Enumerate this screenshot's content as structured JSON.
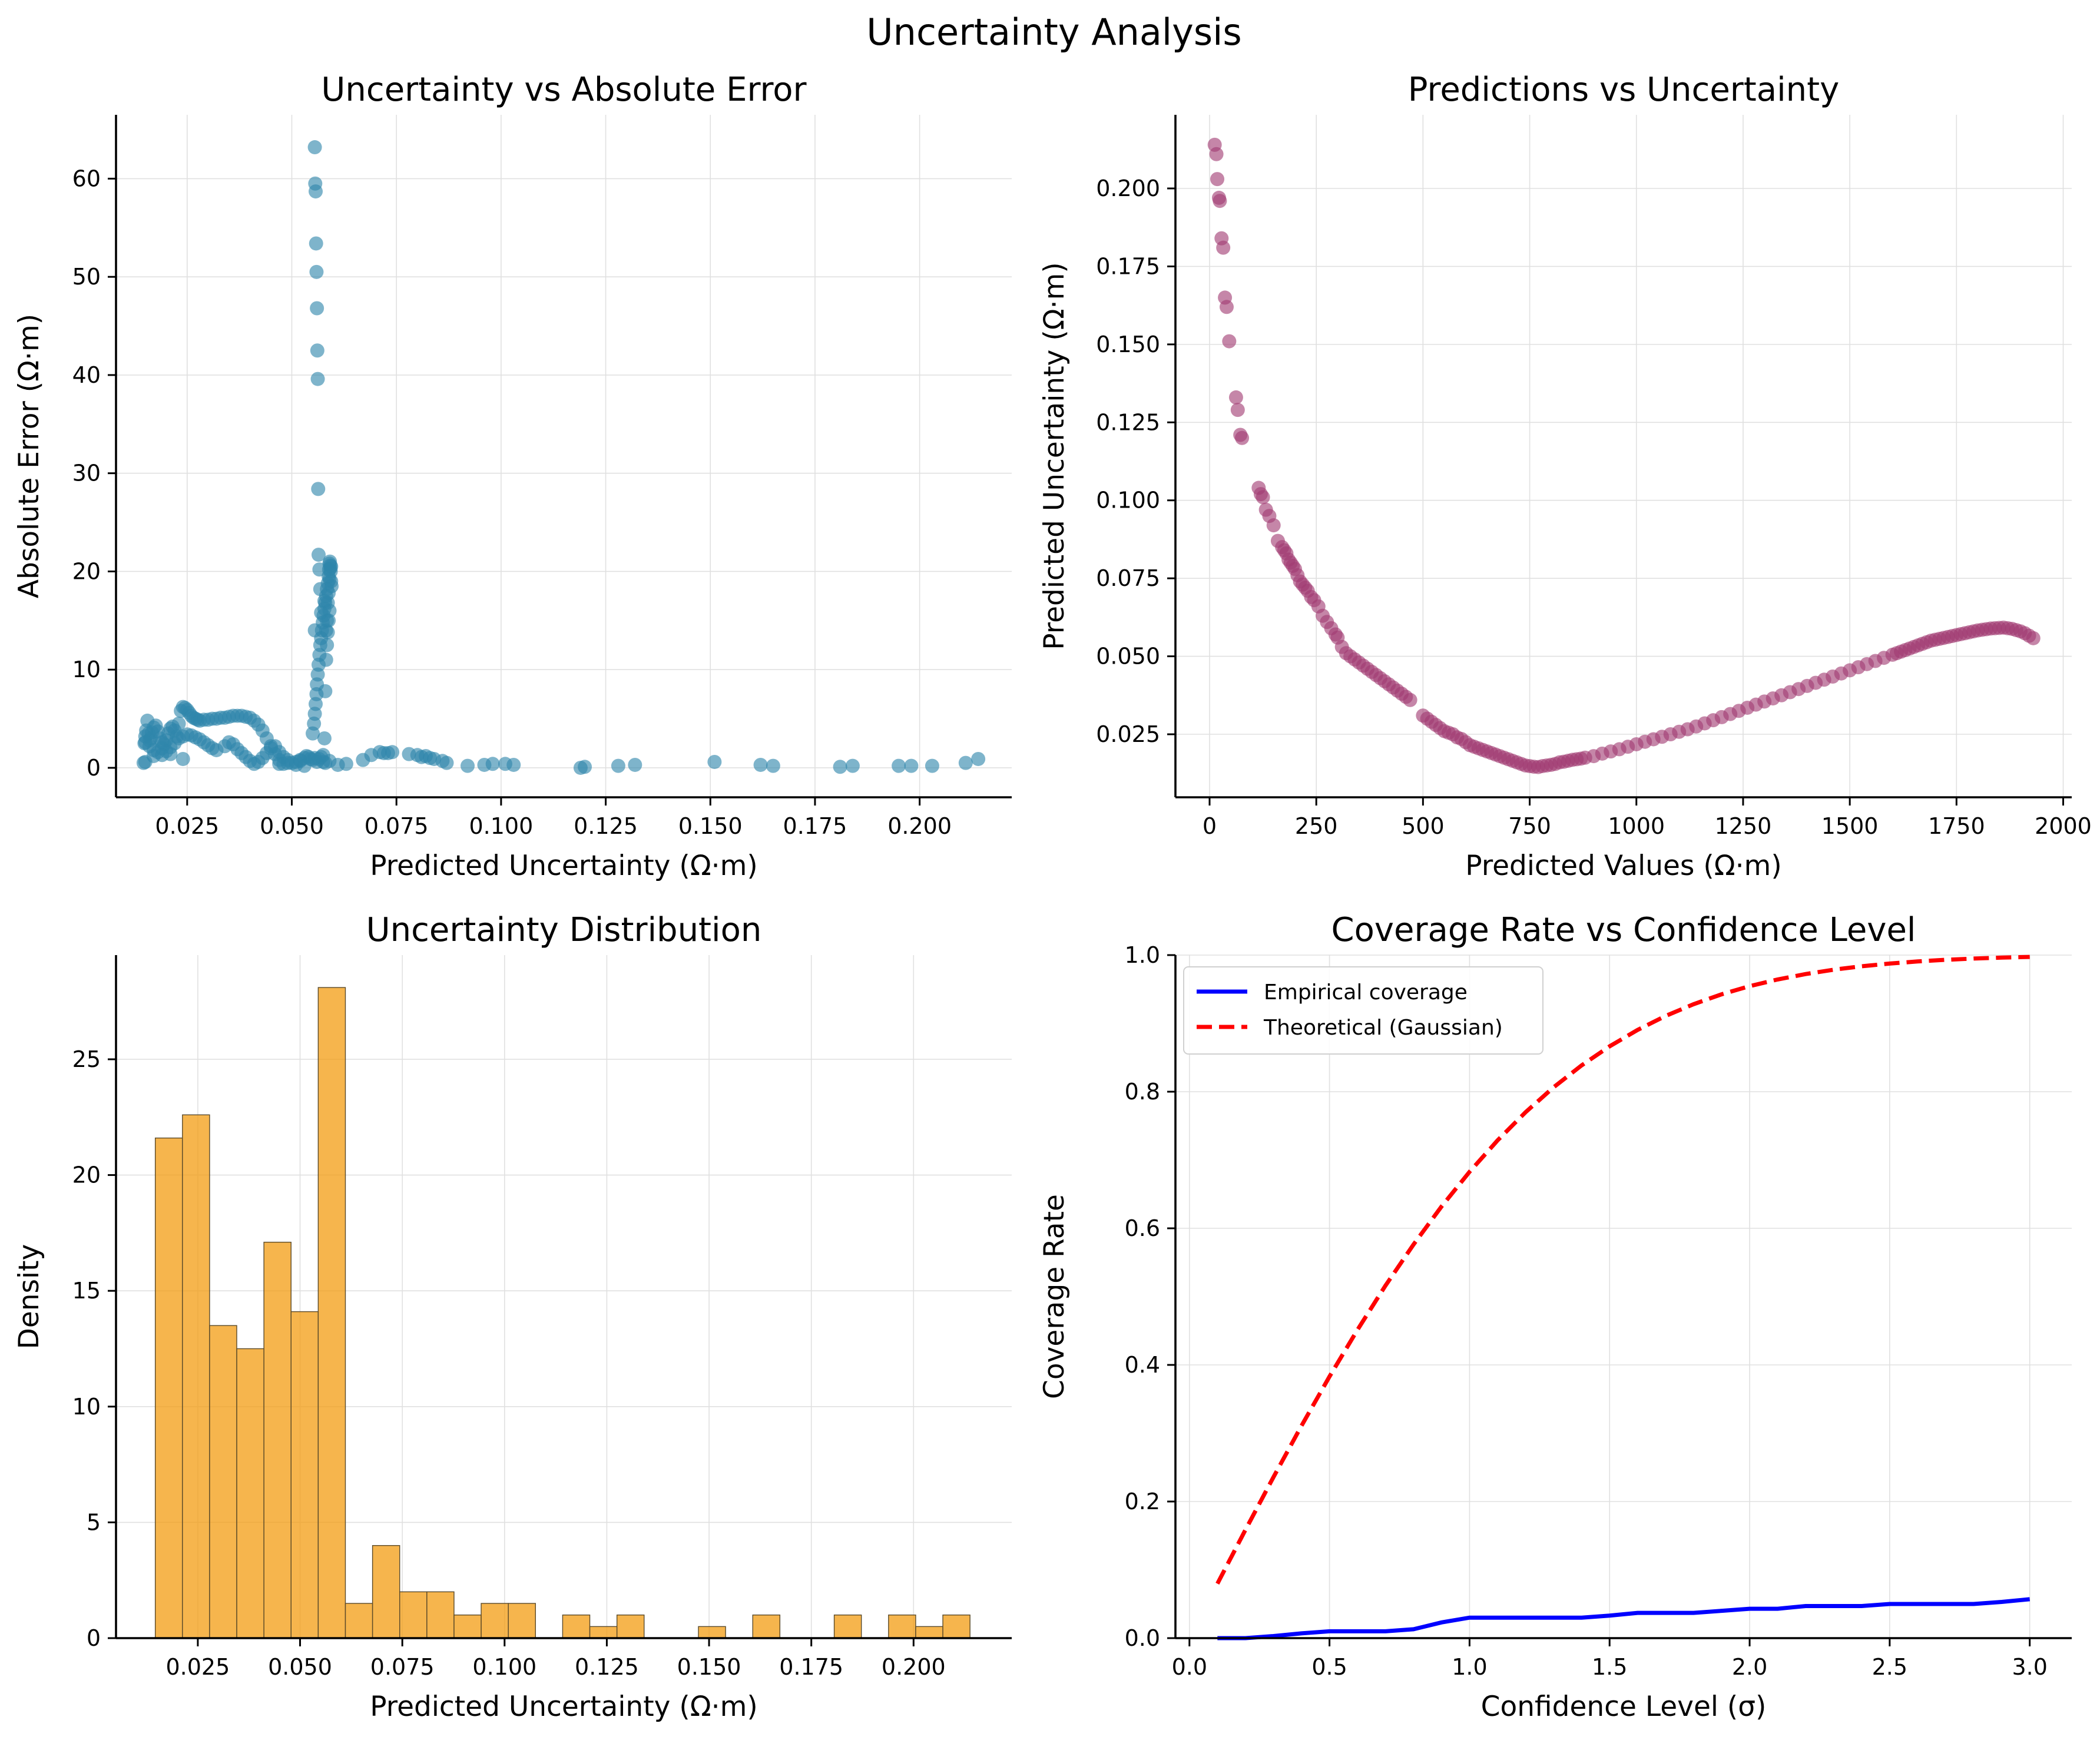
{
  "figure": {
    "title": "Uncertainty Analysis"
  },
  "colors": {
    "scatter1": "#2e86ab",
    "scatter2": "#a23b72",
    "hist": "#f39c12",
    "empirical": "#0000ff",
    "theoretical": "#ff0000"
  },
  "chart_data": [
    {
      "id": "p1",
      "type": "scatter",
      "title": "Uncertainty vs Absolute Error",
      "xlabel": "Predicted Uncertainty (Ω·m)",
      "ylabel": "Absolute Error (Ω·m)",
      "xlim": [
        0.008,
        0.222
      ],
      "ylim": [
        -3,
        66.5
      ],
      "xticks": [
        0.025,
        0.05,
        0.075,
        0.1,
        0.125,
        0.15,
        0.175,
        0.2
      ],
      "xticklabels": [
        "0.025",
        "0.050",
        "0.075",
        "0.100",
        "0.125",
        "0.150",
        "0.175",
        "0.200"
      ],
      "yticks": [
        0,
        10,
        20,
        30,
        40,
        50,
        60
      ],
      "yticklabels": [
        "0",
        "10",
        "20",
        "30",
        "40",
        "50",
        "60"
      ],
      "grid": true,
      "series": [
        {
          "x": [
            0.0146,
            0.0148,
            0.015,
            0.0152,
            0.0155,
            0.0158,
            0.016,
            0.0163,
            0.0166,
            0.017,
            0.0175,
            0.018,
            0.0185,
            0.019,
            0.0195,
            0.02,
            0.0205,
            0.021,
            0.0215,
            0.022,
            0.0225,
            0.023,
            0.0235,
            0.024,
            0.0245,
            0.025,
            0.0255,
            0.026,
            0.0265,
            0.027,
            0.0275,
            0.028,
            0.029,
            0.03,
            0.031,
            0.032,
            0.033,
            0.034,
            0.035,
            0.036,
            0.037,
            0.038,
            0.039,
            0.04,
            0.041,
            0.042,
            0.043,
            0.044,
            0.045,
            0.046,
            0.047,
            0.048,
            0.015,
            0.016,
            0.017,
            0.018,
            0.019,
            0.02,
            0.021,
            0.022,
            0.023,
            0.024,
            0.025,
            0.026,
            0.027,
            0.028,
            0.029,
            0.03,
            0.031,
            0.032,
            0.034,
            0.035,
            0.036,
            0.037,
            0.038,
            0.039,
            0.04,
            0.041,
            0.042,
            0.043,
            0.044,
            0.045,
            0.046,
            0.047,
            0.048,
            0.049,
            0.05,
            0.051,
            0.052,
            0.053,
            0.015,
            0.017,
            0.019,
            0.021,
            0.024,
            0.047,
            0.049,
            0.051,
            0.052,
            0.053,
            0.0535,
            0.054,
            0.0545,
            0.055,
            0.0555,
            0.056,
            0.0565,
            0.057,
            0.0575,
            0.0578,
            0.058,
            0.0582,
            0.0584,
            0.0586,
            0.0588,
            0.059,
            0.055,
            0.0553,
            0.0555,
            0.0557,
            0.0559,
            0.056,
            0.0562,
            0.0564,
            0.0566,
            0.0568,
            0.057,
            0.0572,
            0.0574,
            0.0576,
            0.0578,
            0.058,
            0.0582,
            0.0584,
            0.0586,
            0.0588,
            0.0589,
            0.059,
            0.0591,
            0.0592,
            0.0593,
            0.0594,
            0.0595,
            0.0584,
            0.0586,
            0.0588,
            0.059,
            0.0592,
            0.0594,
            0.0578,
            0.0582,
            0.0555,
            0.0556,
            0.0557,
            0.0558,
            0.0559,
            0.056,
            0.0561,
            0.0562,
            0.0563,
            0.0564,
            0.0566,
            0.0568,
            0.057,
            0.0555,
            0.0575,
            0.058,
            0.059,
            0.061,
            0.063,
            0.067,
            0.069,
            0.071,
            0.072,
            0.073,
            0.074,
            0.078,
            0.08,
            0.081,
            0.082,
            0.083,
            0.084,
            0.086,
            0.087,
            0.092,
            0.096,
            0.098,
            0.101,
            0.103,
            0.119,
            0.12,
            0.128,
            0.132,
            0.151,
            0.162,
            0.165,
            0.181,
            0.184,
            0.195,
            0.198,
            0.203,
            0.211,
            0.214
          ],
          "y": [
            0.5,
            2.5,
            3.2,
            3.8,
            4.8,
            3.5,
            2.8,
            3.0,
            3.6,
            4.1,
            4.3,
            3.7,
            3.0,
            2.6,
            2.4,
            2.8,
            3.5,
            4.0,
            4.2,
            3.8,
            3.2,
            4.5,
            5.8,
            6.2,
            6.1,
            5.9,
            5.6,
            5.3,
            5.1,
            5.0,
            4.9,
            4.8,
            4.9,
            4.9,
            5.0,
            5.0,
            5.1,
            5.1,
            5.2,
            5.3,
            5.3,
            5.3,
            5.2,
            5.1,
            4.8,
            4.4,
            3.8,
            3.0,
            2.2,
            1.4,
            0.8,
            0.4,
            2.6,
            2.2,
            1.8,
            1.6,
            1.3,
            1.7,
            2.1,
            2.5,
            3.0,
            3.2,
            3.4,
            3.3,
            3.1,
            2.9,
            2.6,
            2.3,
            2.0,
            1.8,
            2.2,
            2.6,
            2.4,
            1.9,
            1.5,
            1.1,
            0.7,
            0.4,
            0.6,
            1.0,
            1.5,
            2.0,
            2.2,
            1.6,
            1.1,
            0.8,
            0.5,
            0.3,
            0.7,
            0.2,
            0.6,
            1.2,
            2.0,
            1.4,
            0.9,
            0.4,
            0.5,
            0.6,
            0.8,
            1.0,
            1.2,
            1.1,
            0.9,
            0.8,
            1.0,
            0.6,
            0.9,
            1.1,
            1.3,
            3.0,
            7.8,
            11.0,
            12.5,
            13.8,
            15.0,
            16.0,
            3.5,
            4.5,
            5.5,
            6.5,
            7.5,
            8.5,
            9.5,
            10.5,
            11.5,
            12.5,
            13.2,
            14.0,
            14.8,
            15.5,
            16.2,
            16.8,
            17.5,
            18.2,
            18.8,
            19.5,
            20.2,
            20.8,
            21.0,
            20.6,
            20.0,
            19.0,
            18.5,
            15.0,
            16.8,
            17.8,
            19.2,
            20.3,
            20.5,
            17.0,
            14.0,
            63.2,
            59.5,
            58.7,
            53.4,
            50.5,
            46.8,
            42.5,
            39.6,
            28.4,
            21.7,
            20.2,
            18.2,
            15.8,
            14.0,
            0.6,
            0.5,
            0.7,
            0.3,
            0.4,
            0.8,
            1.3,
            1.6,
            1.5,
            1.5,
            1.6,
            1.4,
            1.3,
            1.1,
            1.2,
            1.0,
            0.9,
            0.7,
            0.5,
            0.2,
            0.3,
            0.4,
            0.4,
            0.3,
            0.0,
            0.1,
            0.2,
            0.3,
            0.6,
            0.3,
            0.2,
            0.1,
            0.2,
            0.2,
            0.2,
            0.2,
            0.5,
            0.9
          ]
        }
      ]
    },
    {
      "id": "p2",
      "type": "scatter",
      "title": "Predictions vs Uncertainty",
      "xlabel": "Predicted Values (Ω·m)",
      "ylabel": "Predicted Uncertainty (Ω·m)",
      "xlim": [
        -80,
        2020
      ],
      "ylim": [
        0.0048,
        0.2236
      ],
      "xticks": [
        0,
        250,
        500,
        750,
        1000,
        1250,
        1500,
        1750,
        2000
      ],
      "xticklabels": [
        "0",
        "250",
        "500",
        "750",
        "1000",
        "1250",
        "1500",
        "1750",
        "2000"
      ],
      "yticks": [
        0.025,
        0.05,
        0.075,
        0.1,
        0.125,
        0.15,
        0.175,
        0.2
      ],
      "yticklabels": [
        "0.025",
        "0.050",
        "0.075",
        "0.100",
        "0.125",
        "0.150",
        "0.175",
        "0.200"
      ],
      "grid": true,
      "series": [
        {
          "x": [
            12,
            16,
            18,
            22,
            24,
            28,
            32,
            36,
            40,
            46,
            62,
            66,
            72,
            76,
            115,
            120,
            125,
            132,
            140,
            150,
            160,
            170,
            175,
            180,
            185,
            190,
            195,
            200,
            206,
            212,
            218,
            224,
            230,
            238,
            245,
            255,
            265,
            275,
            285,
            295,
            300,
            310,
            320,
            330,
            340,
            350,
            360,
            370,
            380,
            390,
            400,
            410,
            420,
            430,
            440,
            450,
            460,
            470,
            500,
            510,
            520,
            530,
            540,
            550,
            560,
            570,
            580,
            590,
            600,
            610,
            620,
            630,
            640,
            650,
            660,
            670,
            680,
            690,
            700,
            710,
            720,
            730,
            740,
            750,
            760,
            770,
            780,
            790,
            800,
            810,
            820,
            830,
            840,
            850,
            860,
            870,
            880,
            900,
            920,
            940,
            960,
            980,
            1000,
            1020,
            1040,
            1060,
            1080,
            1100,
            1120,
            1140,
            1160,
            1180,
            1200,
            1220,
            1240,
            1260,
            1280,
            1300,
            1320,
            1340,
            1360,
            1380,
            1400,
            1420,
            1440,
            1460,
            1480,
            1500,
            1520,
            1540,
            1560,
            1580,
            1600,
            1610,
            1620,
            1630,
            1640,
            1650,
            1660,
            1670,
            1680,
            1690,
            1700,
            1710,
            1720,
            1730,
            1740,
            1750,
            1760,
            1770,
            1780,
            1790,
            1800,
            1810,
            1820,
            1830,
            1840,
            1850,
            1860,
            1870,
            1880,
            1890,
            1900,
            1910,
            1920,
            1930
          ],
          "y": [
            0.214,
            0.211,
            0.203,
            0.197,
            0.196,
            0.184,
            0.181,
            0.165,
            0.162,
            0.151,
            0.133,
            0.129,
            0.121,
            0.12,
            0.104,
            0.102,
            0.101,
            0.097,
            0.095,
            0.092,
            0.087,
            0.085,
            0.084,
            0.083,
            0.081,
            0.08,
            0.079,
            0.078,
            0.076,
            0.074,
            0.073,
            0.072,
            0.071,
            0.069,
            0.068,
            0.066,
            0.063,
            0.061,
            0.059,
            0.057,
            0.056,
            0.053,
            0.051,
            0.05,
            0.049,
            0.048,
            0.047,
            0.046,
            0.045,
            0.044,
            0.043,
            0.042,
            0.041,
            0.04,
            0.039,
            0.038,
            0.037,
            0.036,
            0.031,
            0.03,
            0.029,
            0.028,
            0.027,
            0.026,
            0.0255,
            0.025,
            0.024,
            0.0235,
            0.0225,
            0.0215,
            0.021,
            0.0205,
            0.02,
            0.0195,
            0.019,
            0.0185,
            0.018,
            0.0175,
            0.017,
            0.0165,
            0.016,
            0.0155,
            0.015,
            0.0148,
            0.0146,
            0.0145,
            0.0148,
            0.015,
            0.0152,
            0.0155,
            0.016,
            0.0162,
            0.0165,
            0.0168,
            0.017,
            0.0172,
            0.0175,
            0.018,
            0.0188,
            0.0195,
            0.0202,
            0.021,
            0.0218,
            0.0226,
            0.0234,
            0.0242,
            0.025,
            0.0258,
            0.0266,
            0.0275,
            0.0285,
            0.0295,
            0.0305,
            0.0315,
            0.0325,
            0.0335,
            0.0345,
            0.0355,
            0.0365,
            0.0375,
            0.0385,
            0.0395,
            0.0405,
            0.0415,
            0.0425,
            0.0435,
            0.0445,
            0.0455,
            0.0465,
            0.0475,
            0.0485,
            0.0495,
            0.0505,
            0.051,
            0.0515,
            0.052,
            0.0525,
            0.053,
            0.0535,
            0.054,
            0.0545,
            0.055,
            0.0553,
            0.0556,
            0.0559,
            0.0562,
            0.0565,
            0.0568,
            0.0571,
            0.0574,
            0.0577,
            0.058,
            0.0583,
            0.0585,
            0.0587,
            0.0589,
            0.059,
            0.0591,
            0.0592,
            0.059,
            0.0588,
            0.0584,
            0.058,
            0.0574,
            0.0566,
            0.0558
          ]
        }
      ]
    },
    {
      "id": "p3",
      "type": "bar",
      "title": "Uncertainty Distribution",
      "xlabel": "Predicted Uncertainty (Ω·m)",
      "ylabel": "Density",
      "xlim": [
        0.005,
        0.224
      ],
      "ylim": [
        0,
        29.5
      ],
      "xticks": [
        0.025,
        0.05,
        0.075,
        0.1,
        0.125,
        0.15,
        0.175,
        0.2
      ],
      "xticklabels": [
        "0.025",
        "0.050",
        "0.075",
        "0.100",
        "0.125",
        "0.150",
        "0.175",
        "0.200"
      ],
      "yticks": [
        0,
        5,
        10,
        15,
        20,
        25
      ],
      "yticklabels": [
        "0",
        "5",
        "10",
        "15",
        "20",
        "25"
      ],
      "grid": true,
      "bin_start": 0.0146,
      "bin_width": 0.00664,
      "values": [
        21.6,
        22.6,
        13.5,
        12.5,
        17.1,
        14.1,
        28.1,
        1.5,
        4.0,
        2.0,
        2.0,
        1.0,
        1.5,
        1.5,
        0.0,
        1.0,
        0.5,
        1.0,
        0.0,
        0.0,
        0.5,
        0.0,
        1.0,
        0.0,
        0.0,
        1.0,
        0.0,
        1.0,
        0.5,
        1.0
      ]
    },
    {
      "id": "p4",
      "type": "line",
      "title": "Coverage Rate vs Confidence Level",
      "xlabel": "Confidence Level (σ)",
      "ylabel": "Coverage Rate",
      "xlim": [
        -0.05,
        3.15
      ],
      "ylim": [
        0,
        1.0
      ],
      "xticks": [
        0,
        0.5,
        1,
        1.5,
        2,
        2.5,
        3
      ],
      "xticklabels": [
        "0.0",
        "0.5",
        "1.0",
        "1.5",
        "2.0",
        "2.5",
        "3.0"
      ],
      "yticks": [
        0,
        0.2,
        0.4,
        0.6,
        0.8,
        1.0
      ],
      "yticklabels": [
        "0.0",
        "0.2",
        "0.4",
        "0.6",
        "0.8",
        "1.0"
      ],
      "grid": true,
      "legend": "upper-left",
      "x": [
        0.1,
        0.2,
        0.3,
        0.4,
        0.5,
        0.6,
        0.7,
        0.8,
        0.9,
        1.0,
        1.1,
        1.2,
        1.3,
        1.4,
        1.5,
        1.6,
        1.7,
        1.8,
        1.9,
        2.0,
        2.1,
        2.2,
        2.3,
        2.4,
        2.5,
        2.6,
        2.7,
        2.8,
        2.9,
        3.0
      ],
      "series": [
        {
          "name": "Empirical coverage",
          "style": "solid",
          "values": [
            0.0,
            0.0,
            0.003,
            0.007,
            0.01,
            0.01,
            0.01,
            0.013,
            0.023,
            0.03,
            0.03,
            0.03,
            0.03,
            0.03,
            0.033,
            0.037,
            0.037,
            0.037,
            0.04,
            0.043,
            0.043,
            0.047,
            0.047,
            0.047,
            0.05,
            0.05,
            0.05,
            0.05,
            0.053,
            0.057
          ]
        },
        {
          "name": "Theoretical (Gaussian)",
          "style": "dashed",
          "values": [
            0.0797,
            0.1585,
            0.2358,
            0.3108,
            0.3829,
            0.4515,
            0.5161,
            0.5763,
            0.6319,
            0.6827,
            0.7287,
            0.7699,
            0.8064,
            0.8385,
            0.8664,
            0.8904,
            0.9109,
            0.9281,
            0.9426,
            0.9545,
            0.9643,
            0.9722,
            0.9786,
            0.9836,
            0.9876,
            0.9907,
            0.9931,
            0.9949,
            0.9963,
            0.9973
          ]
        }
      ]
    }
  ]
}
